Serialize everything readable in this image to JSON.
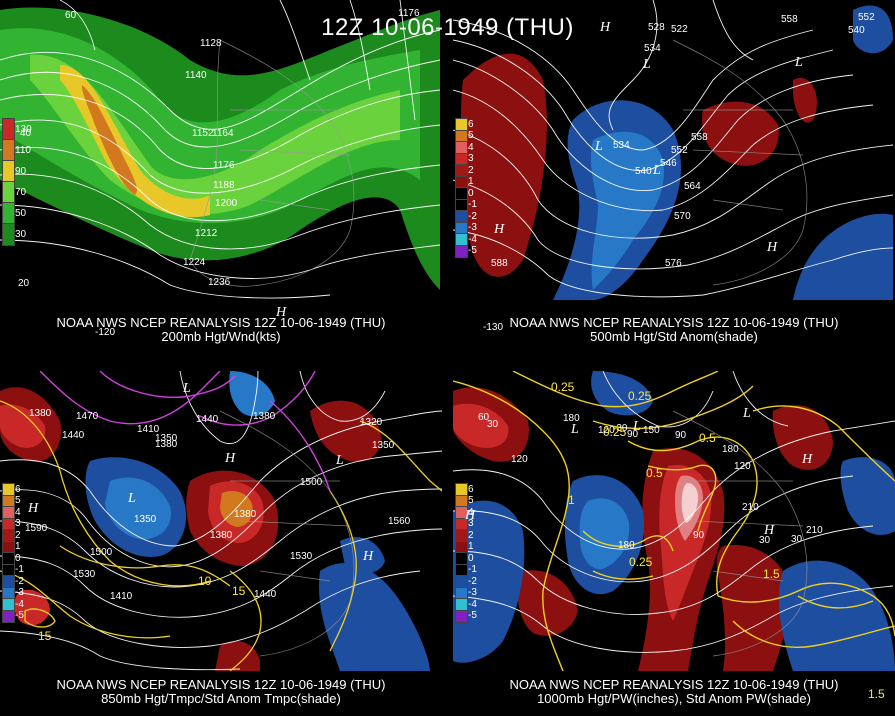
{
  "title": "12Z 10-06-1949 (THU)",
  "colors": {
    "green_dark": "#1c8a1c",
    "green": "#32b432",
    "green_light": "#6ad23c",
    "yellow": "#e8c828",
    "orange": "#d2781e",
    "red_dark": "#8c1010",
    "red": "#c82828",
    "blue_dark": "#1e4ea0",
    "blue": "#2878c8",
    "contour": "#ffffff",
    "magenta": "#d040e0",
    "yellow_line": "#f0d020"
  },
  "panels": [
    {
      "name": "200mb",
      "caption_line1": "NOAA NWS NCEP REANALYSIS 12Z 10-06-1949 (THU)",
      "caption_line2": "200mb Hgt/Wnd(kts)",
      "legend": [
        {
          "label": "130",
          "color": "#c82828"
        },
        {
          "label": "110",
          "color": "#d2781e"
        },
        {
          "label": "90",
          "color": "#e8c828"
        },
        {
          "label": "70",
          "color": "#6ad23c"
        },
        {
          "label": "50",
          "color": "#32b432"
        },
        {
          "label": "30",
          "color": "#1c8a1c"
        }
      ],
      "labels": [
        "1128",
        "1140",
        "1152",
        "1164",
        "1176",
        "1188",
        "1200",
        "1212",
        "1224",
        "1236",
        "1176",
        "60",
        "40",
        "20",
        "-120"
      ],
      "highs": [
        "H"
      ],
      "lows": []
    },
    {
      "name": "500mb",
      "caption_line1": "NOAA NWS NCEP REANALYSIS 12Z 10-06-1949 (THU)",
      "caption_line2": "500mb Hgt/Std Anom(shade)",
      "legend": [
        {
          "label": "6",
          "color": "#e8c828"
        },
        {
          "label": "5",
          "color": "#d2781e"
        },
        {
          "label": "4",
          "color": "#e06060"
        },
        {
          "label": "3",
          "color": "#c82828"
        },
        {
          "label": "2",
          "color": "#a01818"
        },
        {
          "label": "1",
          "color": "#8c1010"
        },
        {
          "label": "0",
          "color": "#000000"
        },
        {
          "label": "-1",
          "color": "#000000"
        },
        {
          "label": "-2",
          "color": "#1e4ea0"
        },
        {
          "label": "-3",
          "color": "#2878c8"
        },
        {
          "label": "-4",
          "color": "#30c0d0"
        },
        {
          "label": "-5",
          "color": "#8020c0"
        }
      ],
      "labels": [
        "534",
        "540",
        "546",
        "552",
        "558",
        "564",
        "570",
        "576",
        "588",
        "528",
        "522",
        "534",
        "558",
        "552",
        "540",
        "-130"
      ],
      "highs": [
        "H",
        "H",
        "H"
      ],
      "lows": [
        "L",
        "L",
        "L",
        "L"
      ]
    },
    {
      "name": "850mb",
      "caption_line1": "NOAA NWS NCEP REANALYSIS 12Z 10-06-1949 (THU)",
      "caption_line2": "850mb Hgt/Tmpc/Std Anom Tmpc(shade)",
      "legend": [
        {
          "label": "6",
          "color": "#e8c828"
        },
        {
          "label": "5",
          "color": "#d2781e"
        },
        {
          "label": "4",
          "color": "#e06060"
        },
        {
          "label": "3",
          "color": "#c82828"
        },
        {
          "label": "2",
          "color": "#a01818"
        },
        {
          "label": "1",
          "color": "#8c1010"
        },
        {
          "label": "0",
          "color": "#000000"
        },
        {
          "label": "-1",
          "color": "#000000"
        },
        {
          "label": "-2",
          "color": "#1e4ea0"
        },
        {
          "label": "-3",
          "color": "#2878c8"
        },
        {
          "label": "-4",
          "color": "#30c0d0"
        },
        {
          "label": "-5",
          "color": "#8020c0"
        }
      ],
      "labels": [
        "1380",
        "1440",
        "1470",
        "1380",
        "1410",
        "1440",
        "1350",
        "1380",
        "1500",
        "1350",
        "1380",
        "1560",
        "1530",
        "1500",
        "1530",
        "1410",
        "1440",
        "1380",
        "1590",
        "1320",
        "1350"
      ],
      "yellow_labels": [
        "10",
        "15",
        "15"
      ],
      "highs": [
        "H",
        "H",
        "H"
      ],
      "lows": [
        "L",
        "L",
        "L"
      ]
    },
    {
      "name": "1000mb",
      "caption_line1": "NOAA NWS NCEP REANALYSIS 12Z 10-06-1949 (THU)",
      "caption_line2": "1000mb Hgt/PW(inches), Std Anom PW(shade)",
      "legend": [
        {
          "label": "6",
          "color": "#e8c828"
        },
        {
          "label": "5",
          "color": "#d2781e"
        },
        {
          "label": "4",
          "color": "#e06060"
        },
        {
          "label": "3",
          "color": "#c82828"
        },
        {
          "label": "2",
          "color": "#a01818"
        },
        {
          "label": "1",
          "color": "#8c1010"
        },
        {
          "label": "0",
          "color": "#000000"
        },
        {
          "label": "-1",
          "color": "#000000"
        },
        {
          "label": "-2",
          "color": "#1e4ea0"
        },
        {
          "label": "-3",
          "color": "#2878c8"
        },
        {
          "label": "-4",
          "color": "#30c0d0"
        },
        {
          "label": "-5",
          "color": "#8020c0"
        }
      ],
      "labels": [
        "60",
        "30",
        "120",
        "180",
        "120",
        "90",
        "150",
        "90",
        "210",
        "180",
        "120",
        "90",
        "210",
        "30",
        "-30",
        "180",
        "30"
      ],
      "yellow_labels": [
        "0.25",
        "0.25",
        "0.25",
        "0.5",
        "0.25",
        "1.5",
        "1.5",
        "1",
        "0.5"
      ],
      "highs": [
        "H",
        "H",
        "H"
      ],
      "lows": [
        "L",
        "L",
        "L"
      ]
    }
  ]
}
